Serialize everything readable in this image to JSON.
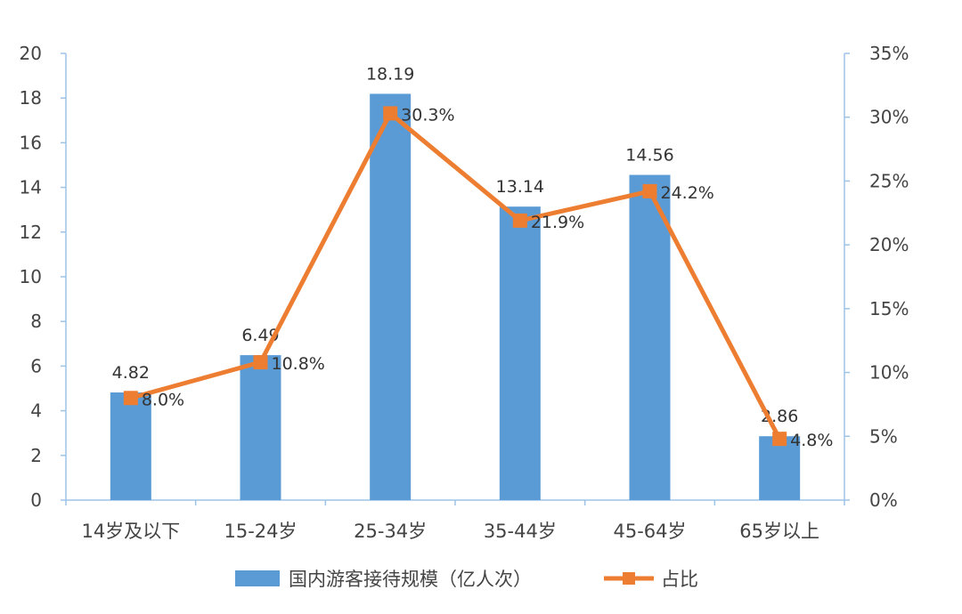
{
  "chart_data": {
    "type": "bar",
    "categories": [
      "14岁及以下",
      "15-24岁",
      "25-34岁",
      "35-44岁",
      "45-64岁",
      "65岁以上"
    ],
    "series": [
      {
        "name": "国内游客接待规模（亿人次）",
        "type": "bar",
        "axis": "left",
        "values": [
          4.82,
          6.49,
          18.19,
          13.14,
          14.56,
          2.86
        ],
        "labels": [
          "4.82",
          "6.49",
          "18.19",
          "13.14",
          "14.56",
          "2.86"
        ],
        "color": "#5B9BD5"
      },
      {
        "name": "占比",
        "type": "line",
        "axis": "right",
        "values": [
          8.0,
          10.8,
          30.3,
          21.9,
          24.2,
          4.8
        ],
        "labels": [
          "8.0%",
          "10.8%",
          "30.3%",
          "21.9%",
          "24.2%",
          "4.8%"
        ],
        "color": "#ED7D31"
      }
    ],
    "y_left": {
      "ylim": [
        0,
        20
      ],
      "ticks": [
        "0",
        "2",
        "4",
        "6",
        "8",
        "10",
        "12",
        "14",
        "16",
        "18",
        "20"
      ]
    },
    "y_right": {
      "ylim": [
        0,
        35
      ],
      "ticks": [
        "0%",
        "5%",
        "10%",
        "15%",
        "20%",
        "25%",
        "30%",
        "35%"
      ]
    },
    "grid": false,
    "legend_position": "bottom",
    "axis_color": "#9DC3E6"
  }
}
